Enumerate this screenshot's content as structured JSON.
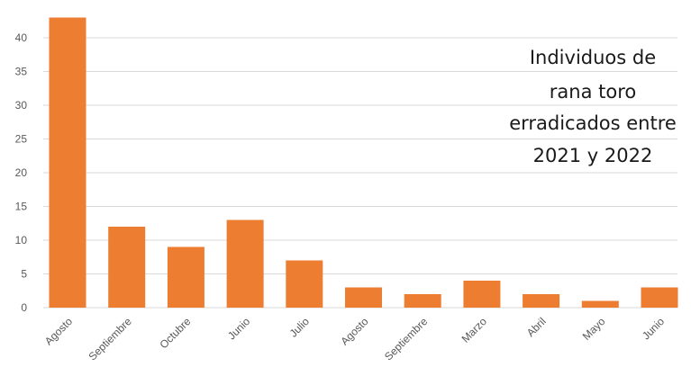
{
  "chart_data": {
    "type": "bar",
    "title_lines": [
      "Individuos de",
      "rana toro",
      "erradicados entre",
      "2021 y 2022"
    ],
    "categories": [
      "Agosto",
      "Septiembre",
      "Octubre",
      "Junio",
      "Julio",
      "Agosto",
      "Septiembre",
      "Marzo",
      "Abril",
      "Mayo",
      "Junio"
    ],
    "values": [
      43,
      12,
      9,
      13,
      7,
      3,
      2,
      4,
      2,
      1,
      3
    ],
    "ylim": [
      0,
      45
    ],
    "yticks": [
      "0",
      "5",
      "10",
      "15",
      "20",
      "25",
      "30",
      "35",
      "40"
    ],
    "xlabel": "",
    "ylabel": "",
    "grid": true,
    "bar_color": "#ED7D31",
    "grid_color": "#D9D9D9"
  }
}
